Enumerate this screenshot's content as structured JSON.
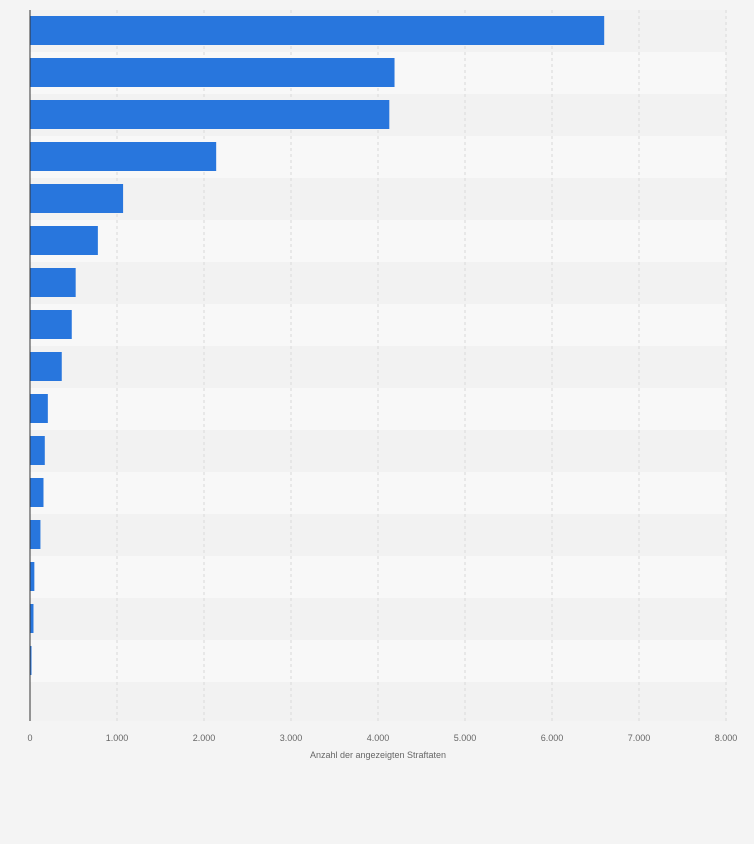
{
  "colors": {
    "background": "#f4f4f4",
    "band_light": "#f8f8f8",
    "band_dark": "#f2f2f2",
    "bar": "#2876dd",
    "grid": "#d9d9d9",
    "axis": "#333333",
    "tick_text": "#666666"
  },
  "chart_data": {
    "type": "bar",
    "orientation": "horizontal",
    "title": "",
    "xlabel": "Anzahl der angezeigten Straftaten",
    "ylabel": "",
    "xlim": [
      0,
      8000
    ],
    "grid": true,
    "legend": "none",
    "x_ticks": [
      0,
      1000,
      2000,
      3000,
      4000,
      5000,
      6000,
      7000,
      8000
    ],
    "x_tick_labels": [
      "0",
      "1.000",
      "2.000",
      "3.000",
      "4.000",
      "5.000",
      "6.000",
      "7.000",
      "8.000"
    ],
    "categories": [
      "",
      "",
      "",
      "",
      "",
      "",
      "",
      "",
      "",
      "",
      "",
      "",
      "",
      "",
      "",
      "",
      ""
    ],
    "series": [
      {
        "values": [
          6600,
          4190,
          4130,
          2140,
          1070,
          780,
          525,
          480,
          365,
          205,
          170,
          155,
          120,
          50,
          40,
          15,
          0
        ]
      }
    ]
  }
}
